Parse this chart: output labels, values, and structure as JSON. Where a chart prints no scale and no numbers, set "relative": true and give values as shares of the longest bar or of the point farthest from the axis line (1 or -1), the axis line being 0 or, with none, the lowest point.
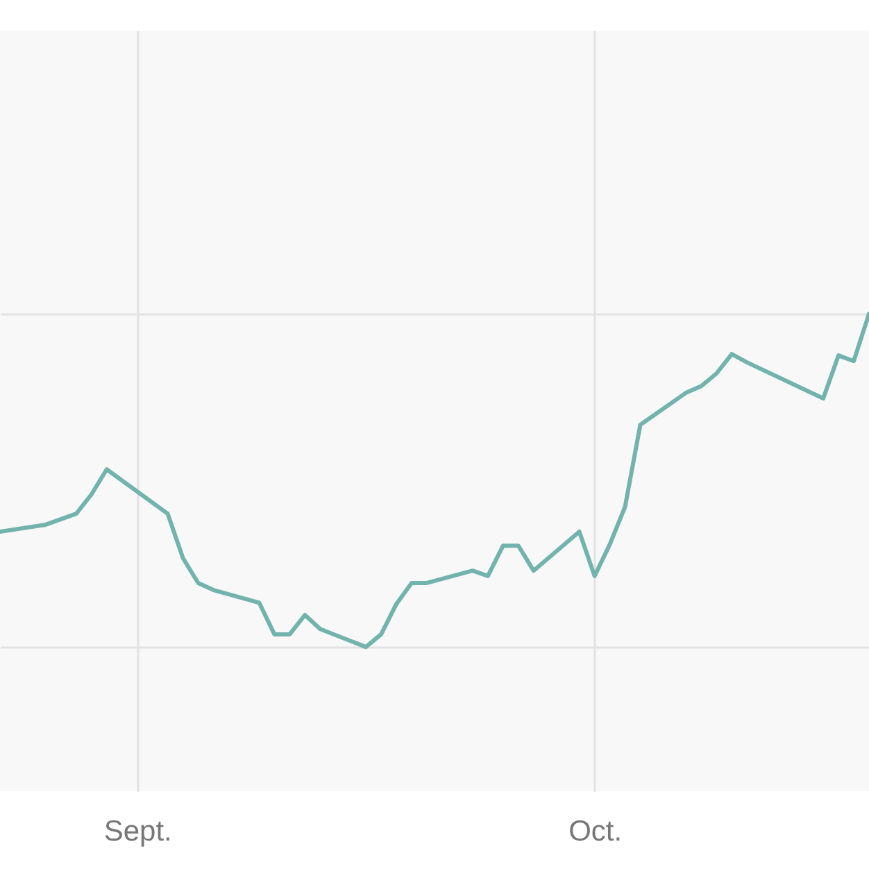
{
  "chart_data": {
    "type": "line",
    "relative": true,
    "grid": true,
    "xlim": [
      "--08-23",
      "--10-19"
    ],
    "xticks": [
      {
        "value": "--09-01",
        "label": "Sept."
      },
      {
        "value": "--10-01",
        "label": "Oct."
      }
    ],
    "x": [
      "--08-23",
      "--08-26",
      "--08-28",
      "--08-29",
      "--08-30",
      "--09-03",
      "--09-04",
      "--09-05",
      "--09-06",
      "--09-09",
      "--09-10",
      "--09-11",
      "--09-12",
      "--09-13",
      "--09-16",
      "--09-17",
      "--09-18",
      "--09-19",
      "--09-20",
      "--09-23",
      "--09-24",
      "--09-25",
      "--09-26",
      "--09-27",
      "--09-30",
      "--10-01",
      "--10-02",
      "--10-03",
      "--10-04",
      "--10-07",
      "--10-08",
      "--10-09",
      "--10-10",
      "--10-11",
      "--10-16",
      "--10-17",
      "--10-18",
      "--10-19"
    ],
    "series": [
      {
        "color": "#72b3ad",
        "values": [
          0.346,
          0.367,
          0.4,
          0.458,
          0.533,
          0.4,
          0.267,
          0.192,
          0.171,
          0.133,
          0.038,
          0.038,
          0.096,
          0.054,
          0,
          0.038,
          0.129,
          0.192,
          0.192,
          0.229,
          0.213,
          0.304,
          0.304,
          0.229,
          0.346,
          0.213,
          0.308,
          0.421,
          0.667,
          0.763,
          0.783,
          0.821,
          0.879,
          0.854,
          0.746,
          0.875,
          0.858,
          1
        ]
      }
    ]
  }
}
